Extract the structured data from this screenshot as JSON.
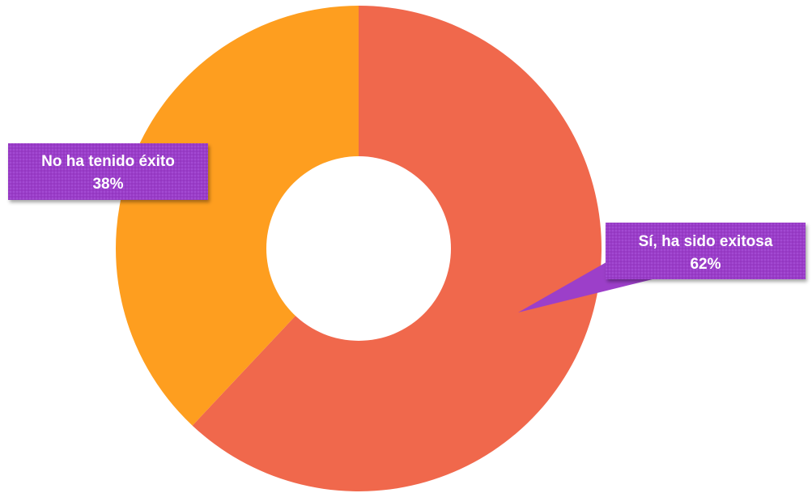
{
  "chart_data": {
    "type": "pie",
    "subtype": "donut",
    "categories": [
      "Sí, ha sido exitosa",
      "No ha tenido éxito"
    ],
    "values": [
      62,
      38
    ],
    "labels": {
      "yes": {
        "category": "Sí, ha sido exitosa",
        "percent": "62%"
      },
      "no": {
        "category": "No ha tenido éxito",
        "percent": "38%"
      }
    },
    "colors": {
      "yes": "#F0684C",
      "no": "#FE9E1F",
      "callout": "#9C3FC9"
    },
    "legend": "none",
    "start_angle": "top",
    "direction": "clockwise"
  }
}
